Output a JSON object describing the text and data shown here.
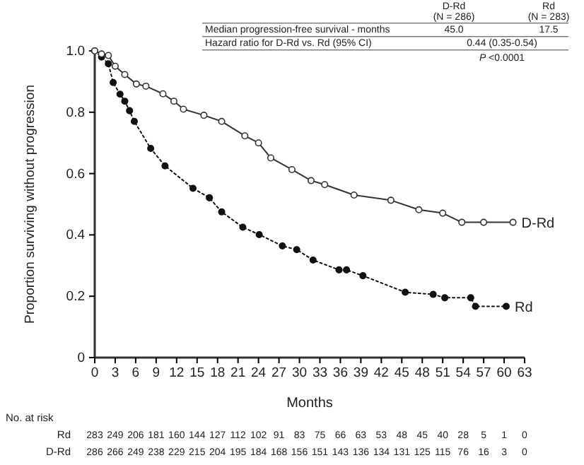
{
  "chart_data": {
    "type": "line",
    "xlabel": "Months",
    "ylabel": "Proportion surviving without progression",
    "xlim": [
      0,
      63
    ],
    "xticks": [
      0,
      3,
      6,
      9,
      12,
      15,
      18,
      21,
      24,
      27,
      30,
      33,
      36,
      39,
      42,
      45,
      48,
      51,
      54,
      57,
      60,
      63
    ],
    "ylim": [
      0,
      1
    ],
    "yticks": [
      0,
      {
        "value": 0.2,
        "label": "0.2"
      },
      {
        "value": 0.4,
        "label": "0.4"
      },
      {
        "value": 0.6,
        "label": "0.6"
      },
      {
        "value": 0.8,
        "label": "0.8"
      },
      {
        "value": 1,
        "label": "1.0"
      }
    ],
    "grid": false,
    "legend": false,
    "series": [
      {
        "name": "D-Rd",
        "color": "#333333",
        "line_style": "solid",
        "marker": "circle",
        "x": [
          0,
          1,
          2,
          3,
          4.4,
          6.1,
          7.5,
          10,
          11.6,
          13,
          16,
          18.6,
          22,
          24,
          25.8,
          28.9,
          31.7,
          33.7,
          38,
          43.4,
          47.5,
          51,
          53.8,
          57,
          61.3
        ],
        "values": [
          1,
          0.99,
          0.985,
          0.95,
          0.923,
          0.892,
          0.885,
          0.86,
          0.836,
          0.81,
          0.79,
          0.77,
          0.723,
          0.7,
          0.651,
          0.613,
          0.577,
          0.564,
          0.53,
          0.513,
          0.482,
          0.471,
          0.441,
          0.441,
          0.441
        ]
      },
      {
        "name": "Rd",
        "color": "#111111",
        "line_style": "dotted",
        "marker": "circle",
        "x": [
          0,
          1,
          2,
          2.7,
          3.7,
          4.4,
          5.1,
          5.8,
          8.2,
          10.3,
          14.4,
          16.8,
          18.6,
          21.7,
          24.1,
          27.5,
          29.6,
          32,
          35.8,
          36.9,
          39.3,
          45.5,
          49.6,
          51.3,
          55.1,
          55.8,
          60.3
        ],
        "values": [
          1,
          0.98,
          0.958,
          0.897,
          0.859,
          0.836,
          0.805,
          0.77,
          0.682,
          0.625,
          0.552,
          0.521,
          0.475,
          0.425,
          0.401,
          0.364,
          0.352,
          0.318,
          0.286,
          0.286,
          0.267,
          0.213,
          0.206,
          0.195,
          0.195,
          0.167,
          0.167
        ]
      }
    ],
    "annotations": [
      "D-Rd",
      "(N = 286)",
      "Rd",
      "(N = 283)",
      "Median progression-free survival - months",
      "45.0",
      "17.5",
      "Hazard ratio for D-Rd vs. Rd (95% CI)",
      "0.44 (0.35-0.54)",
      "P <0.0001",
      "No. at risk",
      "Rd",
      "283 249 206 181 160 144 127 112 102 91 83 75 66 63 53 48 45 40 28 5 1 0",
      "D-Rd",
      "286 266 249 238 229 215 204 195 184 168 156 151 143 136 134 131 125 115 76 16 3 0"
    ]
  }
}
